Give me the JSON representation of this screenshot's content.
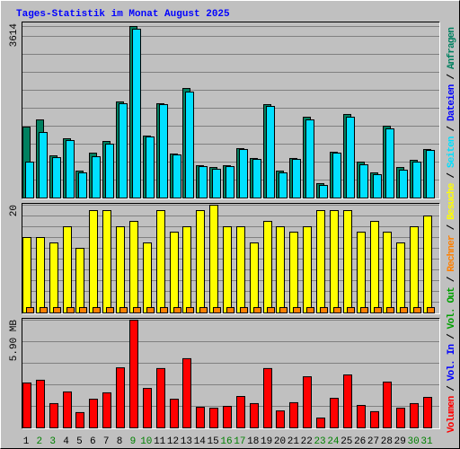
{
  "title": "Tages-Statistik im Monat August 2025",
  "legend": [
    {
      "name": "Volumen",
      "color": "#ff0000"
    },
    {
      "name": "Vol. In",
      "color": "#0000ff"
    },
    {
      "name": "Vol. Out",
      "color": "#00a000"
    },
    {
      "name": "Rechner",
      "color": "#ff8000"
    },
    {
      "name": "Besuche",
      "color": "#ffff00"
    },
    {
      "name": "Seiten",
      "color": "#00e0ff"
    },
    {
      "name": "Dateien",
      "color": "#0000ff"
    },
    {
      "name": "Anfragen",
      "color": "#008060"
    }
  ],
  "separator": " / ",
  "chart_data": [
    {
      "type": "bar",
      "ylim": [
        0,
        3614
      ],
      "yticks": [
        3614
      ],
      "series": [
        {
          "color": "#008060",
          "values": [
            1495,
            1646,
            889,
            1249,
            568,
            946,
            1192,
            2025,
            3614,
            1306,
            1987,
            927,
            2308,
            681,
            643,
            681,
            1041,
            833,
            1968,
            568,
            833,
            1703,
            303,
            965,
            1760,
            757,
            530,
            1514,
            643,
            795,
            1022
          ]
        },
        {
          "color": "#00e0ff",
          "values": [
            757,
            1381,
            851,
            1211,
            530,
            870,
            1135,
            1987,
            3557,
            1287,
            1968,
            908,
            2233,
            662,
            606,
            662,
            1022,
            814,
            1930,
            530,
            814,
            1646,
            265,
            946,
            1703,
            700,
            492,
            1457,
            587,
            757,
            1003
          ]
        }
      ]
    },
    {
      "type": "bar",
      "ylim": [
        0,
        20
      ],
      "yticks": [
        20
      ],
      "series": [
        {
          "color": "#ffff00",
          "values": [
            14,
            14,
            13,
            16,
            12,
            19,
            19,
            16,
            17,
            13,
            19,
            15,
            16,
            19,
            20,
            16,
            16,
            13,
            17,
            16,
            15,
            16,
            19,
            19,
            19,
            15,
            17,
            15,
            13,
            16,
            18
          ]
        },
        {
          "color": "#ff8000",
          "values": [
            1,
            1,
            1,
            1,
            1,
            1,
            1,
            1,
            1,
            1,
            1,
            1,
            1,
            1,
            1,
            1,
            1,
            1,
            1,
            1,
            1,
            1,
            1,
            1,
            1,
            1,
            1,
            1,
            1,
            1,
            1
          ]
        }
      ]
    },
    {
      "type": "bar",
      "ylim": [
        0,
        5.9
      ],
      "yticks": [
        {
          "value": 5.9,
          "label": "5.90 MB"
        }
      ],
      "categories": [
        "1",
        "2",
        "3",
        "4",
        "5",
        "6",
        "7",
        "8",
        "9",
        "10",
        "11",
        "12",
        "13",
        "14",
        "15",
        "16",
        "17",
        "18",
        "19",
        "20",
        "21",
        "22",
        "23",
        "24",
        "25",
        "26",
        "27",
        "28",
        "29",
        "30",
        "31"
      ],
      "category_colors": [
        "#000000",
        "#008000",
        "#008000",
        "#000000",
        "#000000",
        "#000000",
        "#000000",
        "#000000",
        "#008000",
        "#008000",
        "#000000",
        "#000000",
        "#000000",
        "#000000",
        "#000000",
        "#008000",
        "#008000",
        "#000000",
        "#000000",
        "#000000",
        "#000000",
        "#000000",
        "#008000",
        "#008000",
        "#000000",
        "#000000",
        "#000000",
        "#000000",
        "#000000",
        "#008000",
        "#008000"
      ],
      "series": [
        {
          "color": "#ff0000",
          "values": [
            2.46,
            2.61,
            1.33,
            1.97,
            0.84,
            1.57,
            1.92,
            3.29,
            5.9,
            2.16,
            3.25,
            1.57,
            3.79,
            1.13,
            1.08,
            1.18,
            1.72,
            1.33,
            3.25,
            0.93,
            1.38,
            2.8,
            0.54,
            1.62,
            2.9,
            1.23,
            0.89,
            2.51,
            1.08,
            1.33,
            1.67
          ]
        }
      ]
    }
  ]
}
